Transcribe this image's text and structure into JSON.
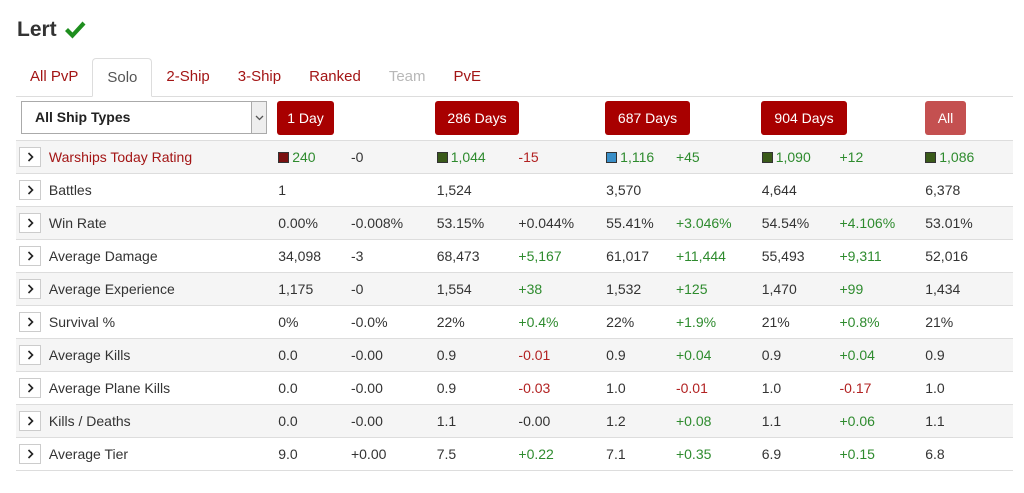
{
  "player": {
    "name": "Lert",
    "verified_icon": "check-icon"
  },
  "tabs": [
    {
      "label": "All PvP",
      "state": "normal"
    },
    {
      "label": "Solo",
      "state": "active"
    },
    {
      "label": "2-Ship",
      "state": "normal"
    },
    {
      "label": "3-Ship",
      "state": "normal"
    },
    {
      "label": "Ranked",
      "state": "normal"
    },
    {
      "label": "Team",
      "state": "disabled"
    },
    {
      "label": "PvE",
      "state": "normal"
    }
  ],
  "ship_filter": {
    "selected": "All Ship Types"
  },
  "periods": [
    "1 Day",
    "286 Days",
    "687 Days",
    "904 Days",
    "All"
  ],
  "colors": {
    "accent": "#a80000",
    "positive": "#2e8b2e",
    "negative": "#b22222",
    "rating_dark_red": "#7a1010",
    "rating_dark_green": "#3a5a1a",
    "rating_blue": "#3a8fc8"
  },
  "rows": [
    {
      "label": "Warships Today Rating",
      "link": true,
      "cells": [
        {
          "value": "240",
          "rating_color": "#7a1010"
        },
        {
          "value": "-0",
          "tone": "neutral"
        },
        {
          "value": "1,044",
          "rating_color": "#3a5a1a"
        },
        {
          "value": "-15",
          "tone": "neg"
        },
        {
          "value": "1,116",
          "rating_color": "#3a8fc8"
        },
        {
          "value": "+45",
          "tone": "pos"
        },
        {
          "value": "1,090",
          "rating_color": "#3a5a1a"
        },
        {
          "value": "+12",
          "tone": "pos"
        },
        {
          "value": "1,086",
          "rating_color": "#3a5a1a"
        }
      ]
    },
    {
      "label": "Battles",
      "cells": [
        {
          "value": "1"
        },
        {
          "value": ""
        },
        {
          "value": "1,524"
        },
        {
          "value": ""
        },
        {
          "value": "3,570"
        },
        {
          "value": ""
        },
        {
          "value": "4,644"
        },
        {
          "value": ""
        },
        {
          "value": "6,378"
        }
      ]
    },
    {
      "label": "Win Rate",
      "cells": [
        {
          "value": "0.00%"
        },
        {
          "value": "-0.008%",
          "tone": "neutral"
        },
        {
          "value": "53.15%"
        },
        {
          "value": "+0.044%",
          "tone": "neutral"
        },
        {
          "value": "55.41%"
        },
        {
          "value": "+3.046%",
          "tone": "pos"
        },
        {
          "value": "54.54%"
        },
        {
          "value": "+4.106%",
          "tone": "pos"
        },
        {
          "value": "53.01%"
        }
      ]
    },
    {
      "label": "Average Damage",
      "cells": [
        {
          "value": "34,098"
        },
        {
          "value": "-3",
          "tone": "neutral"
        },
        {
          "value": "68,473"
        },
        {
          "value": "+5,167",
          "tone": "pos"
        },
        {
          "value": "61,017"
        },
        {
          "value": "+11,444",
          "tone": "pos"
        },
        {
          "value": "55,493"
        },
        {
          "value": "+9,311",
          "tone": "pos"
        },
        {
          "value": "52,016"
        }
      ]
    },
    {
      "label": "Average Experience",
      "cells": [
        {
          "value": "1,175"
        },
        {
          "value": "-0",
          "tone": "neutral"
        },
        {
          "value": "1,554"
        },
        {
          "value": "+38",
          "tone": "pos"
        },
        {
          "value": "1,532"
        },
        {
          "value": "+125",
          "tone": "pos"
        },
        {
          "value": "1,470"
        },
        {
          "value": "+99",
          "tone": "pos"
        },
        {
          "value": "1,434"
        }
      ]
    },
    {
      "label": "Survival %",
      "cells": [
        {
          "value": "0%"
        },
        {
          "value": "-0.0%",
          "tone": "neutral"
        },
        {
          "value": "22%"
        },
        {
          "value": "+0.4%",
          "tone": "pos"
        },
        {
          "value": "22%"
        },
        {
          "value": "+1.9%",
          "tone": "pos"
        },
        {
          "value": "21%"
        },
        {
          "value": "+0.8%",
          "tone": "pos"
        },
        {
          "value": "21%"
        }
      ]
    },
    {
      "label": "Average Kills",
      "cells": [
        {
          "value": "0.0"
        },
        {
          "value": "-0.00",
          "tone": "neutral"
        },
        {
          "value": "0.9"
        },
        {
          "value": "-0.01",
          "tone": "neg"
        },
        {
          "value": "0.9"
        },
        {
          "value": "+0.04",
          "tone": "pos"
        },
        {
          "value": "0.9"
        },
        {
          "value": "+0.04",
          "tone": "pos"
        },
        {
          "value": "0.9"
        }
      ]
    },
    {
      "label": "Average Plane Kills",
      "cells": [
        {
          "value": "0.0"
        },
        {
          "value": "-0.00",
          "tone": "neutral"
        },
        {
          "value": "0.9"
        },
        {
          "value": "-0.03",
          "tone": "neg"
        },
        {
          "value": "1.0"
        },
        {
          "value": "-0.01",
          "tone": "neg"
        },
        {
          "value": "1.0"
        },
        {
          "value": "-0.17",
          "tone": "neg"
        },
        {
          "value": "1.0"
        }
      ]
    },
    {
      "label": "Kills / Deaths",
      "cells": [
        {
          "value": "0.0"
        },
        {
          "value": "-0.00",
          "tone": "neutral"
        },
        {
          "value": "1.1"
        },
        {
          "value": "-0.00",
          "tone": "neutral"
        },
        {
          "value": "1.2"
        },
        {
          "value": "+0.08",
          "tone": "pos"
        },
        {
          "value": "1.1"
        },
        {
          "value": "+0.06",
          "tone": "pos"
        },
        {
          "value": "1.1"
        }
      ]
    },
    {
      "label": "Average Tier",
      "cells": [
        {
          "value": "9.0"
        },
        {
          "value": "+0.00",
          "tone": "neutral"
        },
        {
          "value": "7.5"
        },
        {
          "value": "+0.22",
          "tone": "pos"
        },
        {
          "value": "7.1"
        },
        {
          "value": "+0.35",
          "tone": "pos"
        },
        {
          "value": "6.9"
        },
        {
          "value": "+0.15",
          "tone": "pos"
        },
        {
          "value": "6.8"
        }
      ]
    }
  ]
}
